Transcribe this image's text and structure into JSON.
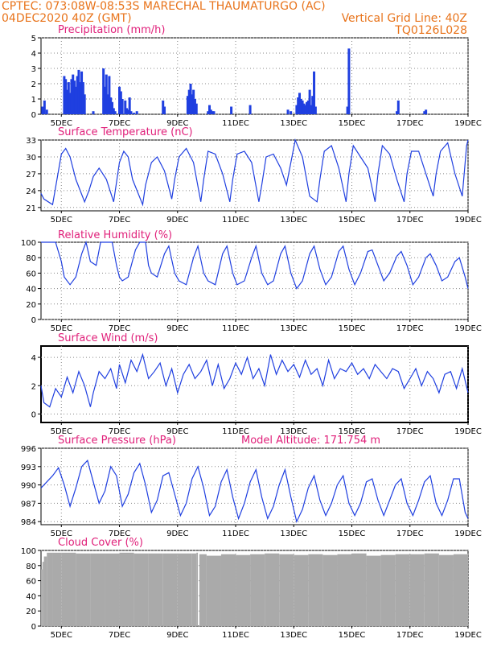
{
  "header": {
    "line1": "CPTEC:   073:08W-08:53S   MARECHAL THAUMATURGO (AC)",
    "line2_left": "04DEC2020 40Z (GMT)",
    "line2_right": "Vertical Grid Line: 40Z",
    "line3_right": "TQ0126L028"
  },
  "colors": {
    "header": "#e8731a",
    "title": "#e0207a",
    "line": "#1f3fe0",
    "cloud": "#aaaaaa",
    "grid": "#888888"
  },
  "x_axis": {
    "tick_labels": [
      "5DEC",
      "7DEC",
      "9DEC",
      "11DEC",
      "13DEC",
      "15DEC",
      "17DEC",
      "19DEC"
    ],
    "tick_days": [
      5,
      7,
      9,
      11,
      13,
      15,
      17,
      19
    ],
    "range_days": [
      4.3,
      19.0
    ]
  },
  "chart_data": [
    {
      "id": "precip",
      "type": "bar",
      "title": "Precipitation (mm/h)",
      "ylim": [
        0,
        5
      ],
      "yticks": [
        0,
        1,
        2,
        3,
        4,
        5
      ],
      "x": [
        4.35,
        4.42,
        4.5,
        5.1,
        5.15,
        5.2,
        5.25,
        5.3,
        5.35,
        5.4,
        5.45,
        5.5,
        5.55,
        5.6,
        5.65,
        5.7,
        5.75,
        5.8,
        6.1,
        6.45,
        6.5,
        6.55,
        6.6,
        6.65,
        6.7,
        6.75,
        6.8,
        6.85,
        7.0,
        7.05,
        7.1,
        7.2,
        7.25,
        7.3,
        7.35,
        7.4,
        7.5,
        7.6,
        8.5,
        8.55,
        9.35,
        9.4,
        9.45,
        9.5,
        9.55,
        9.6,
        9.65,
        10.05,
        10.1,
        10.15,
        10.2,
        10.25,
        10.85,
        11.5,
        12.8,
        12.9,
        13.1,
        13.15,
        13.2,
        13.25,
        13.3,
        13.35,
        13.4,
        13.45,
        13.5,
        13.55,
        13.6,
        13.65,
        13.7,
        13.75,
        14.85,
        14.9,
        16.55,
        16.6,
        17.5,
        17.55
      ],
      "values": [
        0.5,
        0.9,
        0.3,
        2.5,
        2.3,
        1.6,
        2.1,
        1.4,
        2.3,
        2.6,
        2.2,
        1.8,
        2.5,
        2.9,
        2.1,
        2.8,
        2.1,
        1.3,
        0.2,
        3.0,
        1.8,
        2.6,
        1.3,
        2.5,
        1.1,
        0.8,
        0.4,
        0.2,
        1.8,
        1.5,
        1.0,
        0.9,
        0.4,
        0.3,
        1.1,
        0.2,
        0.1,
        0.2,
        0.9,
        0.5,
        1.2,
        1.6,
        2.0,
        1.3,
        1.6,
        1.0,
        0.7,
        0.2,
        0.6,
        0.3,
        0.2,
        0.2,
        0.5,
        0.6,
        0.3,
        0.2,
        0.6,
        1.1,
        1.4,
        1.0,
        0.9,
        0.7,
        0.6,
        0.8,
        0.9,
        1.6,
        0.6,
        1.2,
        2.8,
        0.5,
        0.5,
        4.3,
        0.2,
        0.9,
        0.2,
        0.3
      ]
    },
    {
      "id": "temp",
      "type": "line",
      "title": "Surface Temperature (nC)",
      "ylim": [
        20.4,
        33
      ],
      "yticks": [
        21,
        24,
        27,
        30,
        33
      ],
      "x": [
        4.3,
        4.4,
        4.7,
        5.0,
        5.15,
        5.3,
        5.5,
        5.8,
        5.95,
        6.1,
        6.3,
        6.55,
        6.8,
        7.0,
        7.15,
        7.3,
        7.45,
        7.8,
        7.9,
        8.1,
        8.3,
        8.55,
        8.8,
        8.9,
        9.05,
        9.3,
        9.55,
        9.8,
        9.9,
        10.05,
        10.3,
        10.55,
        10.8,
        10.9,
        11.05,
        11.3,
        11.55,
        11.8,
        11.9,
        12.05,
        12.3,
        12.55,
        12.75,
        12.9,
        13.05,
        13.3,
        13.55,
        13.8,
        13.9,
        14.05,
        14.3,
        14.55,
        14.8,
        14.9,
        15.05,
        15.3,
        15.55,
        15.8,
        15.9,
        16.05,
        16.3,
        16.55,
        16.8,
        16.9,
        17.05,
        17.3,
        17.55,
        17.8,
        17.9,
        18.05,
        18.3,
        18.55,
        18.8,
        18.95,
        19.0
      ],
      "values": [
        23.5,
        22.5,
        21.5,
        30.5,
        31.5,
        30.0,
        26.0,
        22.0,
        24.0,
        26.5,
        28.0,
        26.0,
        22.0,
        29.0,
        31.0,
        30.0,
        26.0,
        21.5,
        25.0,
        29.0,
        30.0,
        27.5,
        22.5,
        26.0,
        30.0,
        31.5,
        29.0,
        22.0,
        26.0,
        31.0,
        30.5,
        27.0,
        22.0,
        26.0,
        30.5,
        31.0,
        29.0,
        22.0,
        25.0,
        30.0,
        30.5,
        28.0,
        25.0,
        29.0,
        33.0,
        30.0,
        23.0,
        22.0,
        26.0,
        31.0,
        32.0,
        28.0,
        22.0,
        27.0,
        32.0,
        30.0,
        28.0,
        22.0,
        27.0,
        32.0,
        30.5,
        26.0,
        22.0,
        27.0,
        31.0,
        31.0,
        27.0,
        23.0,
        27.0,
        31.0,
        32.5,
        27.0,
        23.0,
        32.0,
        33.0
      ]
    },
    {
      "id": "rh",
      "type": "line",
      "title": "Relative Humidity (%)",
      "ylim": [
        0,
        100
      ],
      "yticks": [
        0,
        20,
        40,
        60,
        80,
        100
      ],
      "x": [
        4.3,
        4.5,
        4.8,
        5.0,
        5.1,
        5.3,
        5.5,
        5.7,
        5.85,
        6.0,
        6.2,
        6.35,
        6.5,
        6.75,
        6.9,
        7.0,
        7.1,
        7.3,
        7.55,
        7.7,
        7.9,
        8.0,
        8.1,
        8.3,
        8.55,
        8.7,
        8.9,
        9.05,
        9.3,
        9.55,
        9.7,
        9.9,
        10.05,
        10.3,
        10.55,
        10.7,
        10.9,
        11.05,
        11.3,
        11.55,
        11.7,
        11.9,
        12.1,
        12.3,
        12.55,
        12.7,
        12.9,
        13.1,
        13.3,
        13.55,
        13.7,
        13.9,
        14.1,
        14.3,
        14.55,
        14.7,
        14.9,
        15.1,
        15.3,
        15.55,
        15.7,
        15.9,
        16.1,
        16.3,
        16.55,
        16.7,
        16.9,
        17.1,
        17.3,
        17.55,
        17.7,
        17.9,
        18.1,
        18.3,
        18.55,
        18.7,
        18.9,
        19.0
      ],
      "values": [
        100,
        100,
        100,
        75,
        55,
        45,
        55,
        85,
        100,
        75,
        70,
        100,
        100,
        100,
        70,
        55,
        50,
        55,
        90,
        100,
        100,
        70,
        60,
        55,
        85,
        95,
        60,
        50,
        45,
        80,
        95,
        60,
        50,
        45,
        85,
        95,
        60,
        45,
        50,
        80,
        95,
        60,
        45,
        50,
        85,
        95,
        60,
        40,
        50,
        85,
        95,
        65,
        45,
        55,
        88,
        95,
        65,
        45,
        60,
        88,
        90,
        70,
        50,
        60,
        82,
        88,
        70,
        45,
        55,
        80,
        85,
        70,
        50,
        55,
        75,
        80,
        55,
        40
      ]
    },
    {
      "id": "wind",
      "type": "line",
      "title": "Surface Wind (m/s)",
      "ylim": [
        -0.6,
        4.8
      ],
      "yticks": [
        0,
        2,
        4
      ],
      "x": [
        4.3,
        4.4,
        4.6,
        4.8,
        5.0,
        5.2,
        5.4,
        5.6,
        5.8,
        6.0,
        6.1,
        6.3,
        6.5,
        6.7,
        6.9,
        7.0,
        7.2,
        7.4,
        7.6,
        7.8,
        8.0,
        8.2,
        8.4,
        8.6,
        8.8,
        9.0,
        9.2,
        9.4,
        9.6,
        9.8,
        10.0,
        10.2,
        10.4,
        10.6,
        10.8,
        11.0,
        11.2,
        11.4,
        11.6,
        11.8,
        12.0,
        12.2,
        12.4,
        12.6,
        12.8,
        13.0,
        13.2,
        13.4,
        13.6,
        13.8,
        14.0,
        14.2,
        14.4,
        14.6,
        14.8,
        15.0,
        15.2,
        15.4,
        15.6,
        15.8,
        16.0,
        16.2,
        16.4,
        16.6,
        16.8,
        17.0,
        17.2,
        17.4,
        17.6,
        17.8,
        18.0,
        18.2,
        18.4,
        18.6,
        18.8,
        19.0
      ],
      "values": [
        2.0,
        0.8,
        0.5,
        1.8,
        1.2,
        2.6,
        1.5,
        3.0,
        2.0,
        0.5,
        1.5,
        3.0,
        2.5,
        3.2,
        1.8,
        3.5,
        2.2,
        3.8,
        3.0,
        4.2,
        2.5,
        3.0,
        3.6,
        2.0,
        3.2,
        1.5,
        2.8,
        3.5,
        2.5,
        3.0,
        3.8,
        2.0,
        3.5,
        1.8,
        2.5,
        3.6,
        2.8,
        4.0,
        2.5,
        3.2,
        2.0,
        4.2,
        2.8,
        3.8,
        3.0,
        3.5,
        2.6,
        3.8,
        2.8,
        3.2,
        2.0,
        3.8,
        2.5,
        3.2,
        3.0,
        3.6,
        2.8,
        3.2,
        2.5,
        3.5,
        3.0,
        2.5,
        3.2,
        3.0,
        1.8,
        2.5,
        3.2,
        2.0,
        3.0,
        2.5,
        1.5,
        2.8,
        3.0,
        1.8,
        3.2,
        1.5
      ]
    },
    {
      "id": "pressure",
      "type": "line",
      "title": "Surface Pressure (hPa)",
      "annotation": "Model Altitude: 171.754  m",
      "ylim": [
        983.5,
        996
      ],
      "yticks": [
        984,
        987,
        990,
        993,
        996
      ],
      "x": [
        4.3,
        4.5,
        4.7,
        4.9,
        5.1,
        5.3,
        5.5,
        5.7,
        5.9,
        6.1,
        6.3,
        6.5,
        6.7,
        6.9,
        7.1,
        7.3,
        7.5,
        7.7,
        7.9,
        8.1,
        8.3,
        8.5,
        8.7,
        8.9,
        9.1,
        9.3,
        9.5,
        9.7,
        9.9,
        10.1,
        10.3,
        10.5,
        10.7,
        10.9,
        11.1,
        11.3,
        11.5,
        11.7,
        11.9,
        12.1,
        12.3,
        12.5,
        12.7,
        12.9,
        13.1,
        13.3,
        13.5,
        13.7,
        13.9,
        14.1,
        14.3,
        14.5,
        14.7,
        14.9,
        15.1,
        15.3,
        15.5,
        15.7,
        15.9,
        16.1,
        16.3,
        16.5,
        16.7,
        16.9,
        17.1,
        17.3,
        17.5,
        17.7,
        17.9,
        18.1,
        18.3,
        18.5,
        18.7,
        18.9,
        19.0
      ],
      "values": [
        989.5,
        990.5,
        991.5,
        992.8,
        990.0,
        986.5,
        989.5,
        993.0,
        994.0,
        990.5,
        987.0,
        989.0,
        993.0,
        991.5,
        986.5,
        988.5,
        992.0,
        993.5,
        990.0,
        985.5,
        987.5,
        991.5,
        992.0,
        988.5,
        985.0,
        987.0,
        991.0,
        993.0,
        989.5,
        985.0,
        986.5,
        990.5,
        992.5,
        988.0,
        984.5,
        987.0,
        990.5,
        992.5,
        988.0,
        984.5,
        986.5,
        990.0,
        992.5,
        988.0,
        984.0,
        986.0,
        989.5,
        991.5,
        987.5,
        985.0,
        987.0,
        990.0,
        991.5,
        987.0,
        985.0,
        987.0,
        990.5,
        991.0,
        987.5,
        985.0,
        987.5,
        990.0,
        991.0,
        987.0,
        985.0,
        987.5,
        990.5,
        991.5,
        987.0,
        985.0,
        987.5,
        991.0,
        991.0,
        985.5,
        984.5
      ]
    },
    {
      "id": "cloud",
      "type": "area",
      "title": "Cloud Cover (%)",
      "ylim": [
        0,
        100
      ],
      "yticks": [
        0,
        20,
        40,
        60,
        80,
        100
      ],
      "x": [
        4.3,
        4.35,
        4.4,
        4.5,
        4.7,
        5.0,
        5.5,
        6.0,
        6.5,
        7.0,
        7.5,
        8.0,
        8.5,
        9.0,
        9.5,
        9.65,
        9.7,
        9.75,
        10.0,
        10.5,
        11.0,
        11.5,
        12.0,
        12.5,
        13.0,
        13.5,
        14.0,
        14.5,
        15.0,
        15.5,
        16.0,
        16.5,
        17.0,
        17.5,
        18.0,
        18.5,
        19.0
      ],
      "values": [
        75,
        85,
        92,
        97,
        97,
        97,
        96,
        96,
        96,
        97,
        96,
        96,
        96,
        96,
        96,
        97,
        0,
        95,
        93,
        95,
        94,
        95,
        96,
        95,
        94,
        95,
        94,
        95,
        96,
        93,
        94,
        95,
        95,
        96,
        94,
        95,
        95
      ]
    }
  ]
}
